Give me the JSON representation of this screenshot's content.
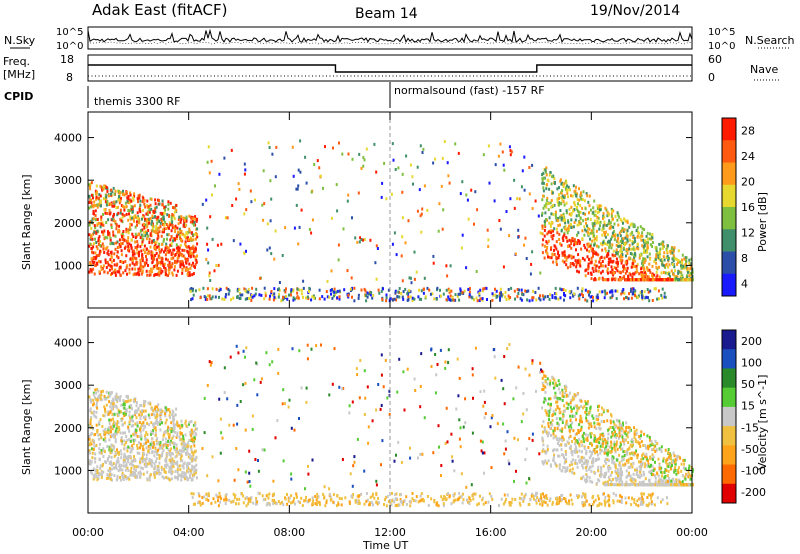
{
  "header": {
    "station": "Adak East (fitACF)",
    "beam": "Beam 14",
    "date": "19/Nov/2014"
  },
  "side_labels": {
    "nsky": "N.Sky",
    "freq_line1": "Freq.",
    "freq_line2": "[MHz]",
    "cpid": "CPID",
    "nsearch": "N.Search",
    "nave": "Nave"
  },
  "cpid_labels": {
    "left": "themis 3300 RF",
    "right": "normalsound (fast) -157 RF"
  },
  "colors": {
    "power": [
      "#1a1aff",
      "#2b4fa8",
      "#3f8f6a",
      "#7fbf3f",
      "#e6d82e",
      "#ff9a1a",
      "#ff5a10",
      "#ff1a00"
    ],
    "velocity": [
      "#e00000",
      "#ff6a00",
      "#ffa31a",
      "#f0c040",
      "#c8c8c8",
      "#55cc33",
      "#2a8a2a",
      "#1a4fbf",
      "#1a1a8f"
    ]
  },
  "chart_data": [
    {
      "type": "line",
      "name_label": "N.Sky / N.Search",
      "left_ticks": [
        "10^5",
        "10^0"
      ],
      "right_ticks": [
        "10^5",
        "10^0"
      ]
    },
    {
      "type": "line",
      "left_ticks": [
        "18",
        "8"
      ],
      "right_ticks": [
        "60",
        "0"
      ],
      "freq_steps": [
        {
          "from": "00:00",
          "to": "09:50",
          "level": "high"
        },
        {
          "from": "09:50",
          "to": "17:50",
          "level": "low"
        },
        {
          "from": "17:50",
          "to": "24:00",
          "level": "high"
        }
      ]
    },
    {
      "type": "heatmap",
      "ylabel": "Slant Range [km]",
      "yticks": [
        "4000",
        "3000",
        "2000",
        "1000"
      ],
      "colorbar_label": "Power [dB]",
      "colorbar_ticks": [
        "28",
        "24",
        "20",
        "16",
        "12",
        "8",
        "4"
      ]
    },
    {
      "type": "heatmap",
      "ylabel": "Slant Range [km]",
      "yticks": [
        "4000",
        "3000",
        "2000",
        "1000"
      ],
      "colorbar_label": "Velocity [m s^-1]",
      "colorbar_ticks": [
        "200",
        "100",
        "50",
        "15",
        "-15",
        "-50",
        "-100",
        "-200"
      ],
      "xticks": [
        "00:00",
        "04:00",
        "08:00",
        "12:00",
        "16:00",
        "20:00",
        "00:00"
      ],
      "xlabel": "Time UT"
    }
  ]
}
